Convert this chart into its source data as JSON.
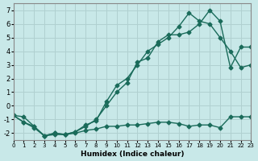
{
  "xlabel": "Humidex (Indice chaleur)",
  "ylabel": "",
  "background_color": "#c8e8e8",
  "grid_color": "#b0d0d0",
  "line_color": "#1a6b5a",
  "xlim": [
    0,
    23
  ],
  "ylim": [
    -2.5,
    7.5
  ],
  "xticks": [
    0,
    1,
    2,
    3,
    4,
    5,
    6,
    7,
    8,
    9,
    10,
    11,
    12,
    13,
    14,
    15,
    16,
    17,
    18,
    19,
    20,
    21,
    22,
    23
  ],
  "yticks": [
    -2,
    -1,
    0,
    1,
    2,
    3,
    4,
    5,
    6,
    7
  ],
  "line1_x": [
    0,
    1,
    2,
    3,
    4,
    5,
    6,
    7,
    8,
    9,
    10,
    11,
    12,
    13,
    14,
    15,
    16,
    17,
    18,
    19,
    20,
    21,
    22,
    23
  ],
  "line1_y": [
    -0.7,
    -1.2,
    -1.5,
    -2.2,
    -2.0,
    -2.1,
    -1.9,
    -1.5,
    -1.0,
    0.0,
    1.0,
    1.7,
    3.2,
    3.5,
    4.7,
    5.2,
    5.2,
    5.4,
    6.0,
    7.0,
    6.2,
    2.8,
    4.3,
    4.3
  ],
  "line2_x": [
    0,
    1,
    2,
    3,
    4,
    5,
    6,
    7,
    8,
    9,
    10,
    11,
    12,
    13,
    14,
    15,
    16,
    17,
    18,
    19,
    20,
    21,
    22,
    23
  ],
  "line2_y": [
    -0.7,
    -0.8,
    -1.5,
    -2.2,
    -2.0,
    -2.1,
    -1.9,
    -1.4,
    -1.1,
    0.3,
    1.5,
    2.0,
    3.0,
    4.0,
    4.5,
    5.0,
    5.8,
    6.8,
    6.2,
    6.0,
    5.0,
    4.0,
    2.8,
    3.0
  ],
  "line3_x": [
    0,
    1,
    2,
    3,
    4,
    5,
    6,
    7,
    8,
    9,
    10,
    11,
    12,
    13,
    14,
    15,
    16,
    17,
    18,
    19,
    20,
    21,
    22,
    23
  ],
  "line3_y": [
    -0.7,
    -1.2,
    -1.6,
    -2.2,
    -2.1,
    -2.1,
    -2.0,
    -1.8,
    -1.7,
    -1.5,
    -1.5,
    -1.4,
    -1.4,
    -1.3,
    -1.2,
    -1.2,
    -1.3,
    -1.5,
    -1.4,
    -1.4,
    -1.6,
    -0.8,
    -0.8,
    -0.8
  ]
}
